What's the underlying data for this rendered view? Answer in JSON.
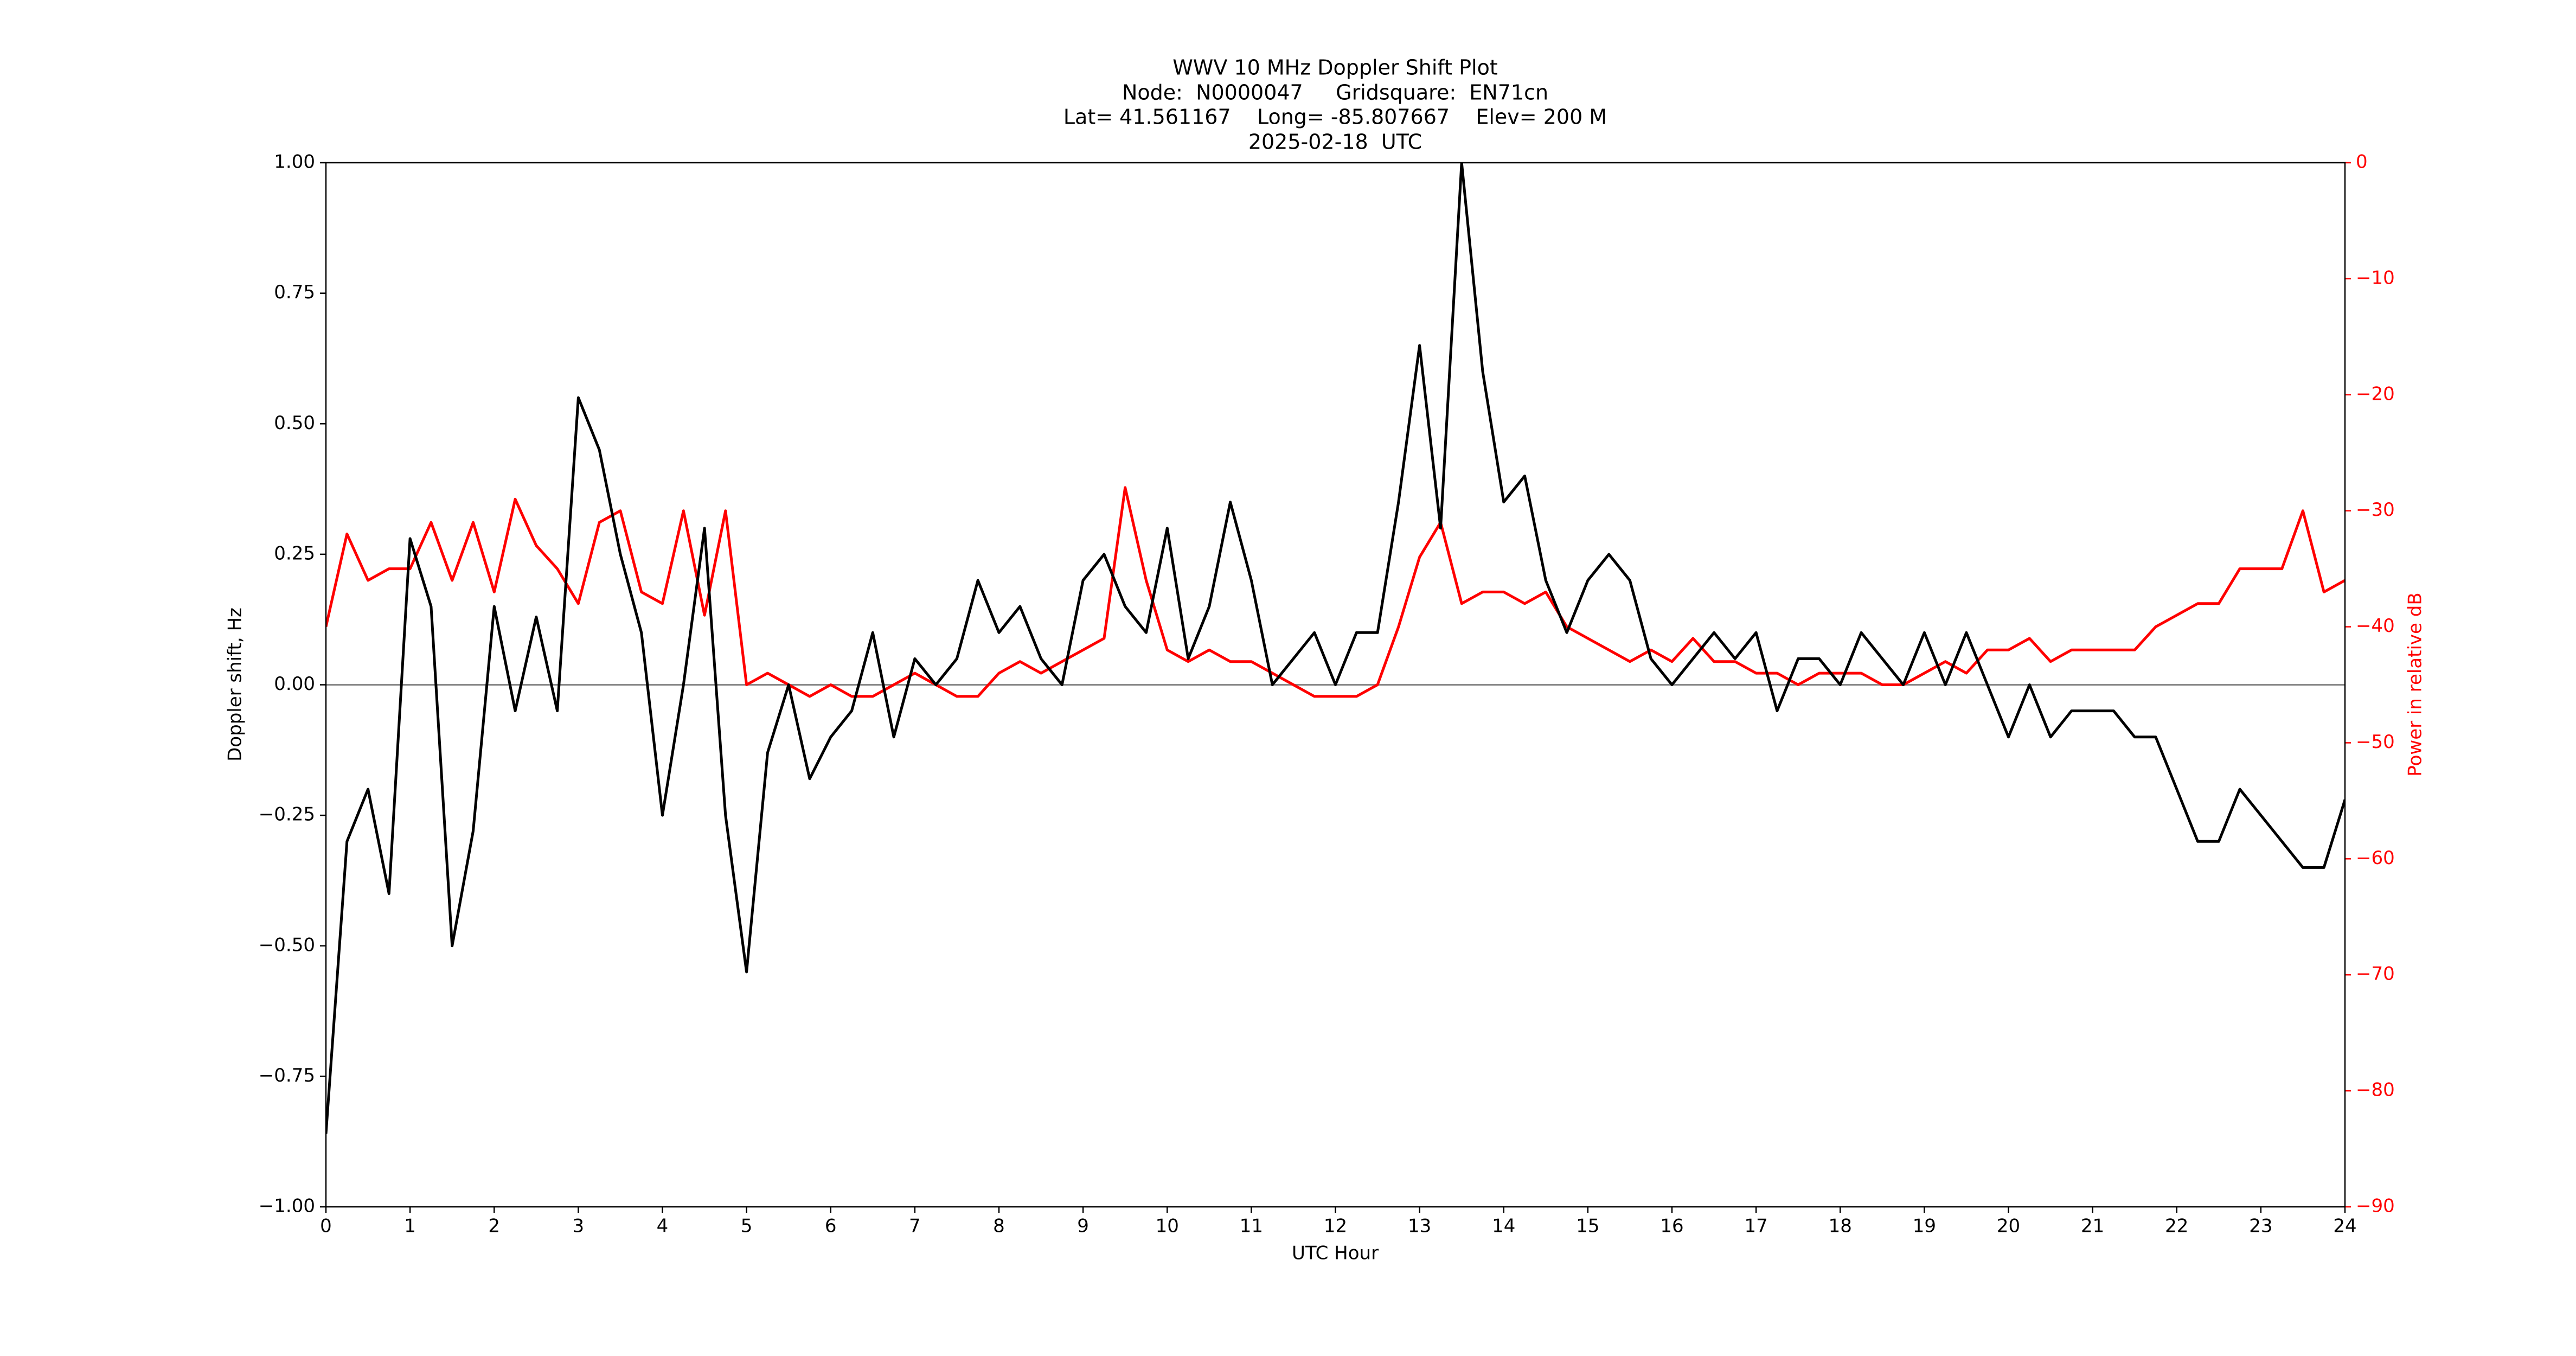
{
  "chart_data": {
    "type": "line",
    "title": "WWV 10 MHz Doppler Shift Plot",
    "subtitle": [
      "Node:  N0000047     Gridsquare:  EN71cn",
      "Lat= 41.561167    Long= -85.807667    Elev= 200 M",
      "2025-02-18  UTC"
    ],
    "x_label": "UTC Hour",
    "y_label": "Doppler shift, Hz",
    "y2_label": "Power in relative dB",
    "x": [
      0,
      0.25,
      0.5,
      0.75,
      1,
      1.25,
      1.5,
      1.75,
      2,
      2.25,
      2.5,
      2.75,
      3,
      3.25,
      3.5,
      3.75,
      4,
      4.25,
      4.5,
      4.75,
      5,
      5.25,
      5.5,
      5.75,
      6,
      6.25,
      6.5,
      6.75,
      7,
      7.25,
      7.5,
      7.75,
      8,
      8.25,
      8.5,
      8.75,
      9,
      9.25,
      9.5,
      9.75,
      10,
      10.25,
      10.5,
      10.75,
      11,
      11.25,
      11.5,
      11.75,
      12,
      12.25,
      12.5,
      12.75,
      13,
      13.25,
      13.5,
      13.75,
      14,
      14.25,
      14.5,
      14.75,
      15,
      15.25,
      15.5,
      15.75,
      16,
      16.25,
      16.5,
      16.75,
      17,
      17.25,
      17.5,
      17.75,
      18,
      18.25,
      18.5,
      18.75,
      19,
      19.25,
      19.5,
      19.75,
      20,
      20.25,
      20.5,
      20.75,
      21,
      21.25,
      21.5,
      21.75,
      22,
      22.25,
      22.5,
      22.75,
      23,
      23.25,
      23.5,
      23.75,
      24
    ],
    "series": [
      {
        "color": "#000000",
        "values": [
          -0.86,
          -0.3,
          -0.2,
          -0.4,
          0.28,
          0.15,
          -0.5,
          -0.28,
          0.15,
          -0.05,
          0.13,
          -0.05,
          0.55,
          0.45,
          0.25,
          0.1,
          -0.25,
          0.0,
          0.3,
          -0.25,
          -0.55,
          -0.13,
          0.0,
          -0.18,
          -0.1,
          -0.05,
          0.1,
          -0.1,
          0.05,
          0.0,
          0.05,
          0.2,
          0.1,
          0.15,
          0.05,
          0.0,
          0.2,
          0.25,
          0.15,
          0.1,
          0.3,
          0.05,
          0.15,
          0.35,
          0.2,
          0.0,
          0.05,
          0.1,
          0.0,
          0.1,
          0.1,
          0.35,
          0.65,
          0.3,
          1.0,
          0.6,
          0.35,
          0.4,
          0.2,
          0.1,
          0.2,
          0.25,
          0.2,
          0.05,
          0.0,
          0.05,
          0.1,
          0.05,
          0.1,
          -0.05,
          0.05,
          0.05,
          0.0,
          0.1,
          0.05,
          0.0,
          0.1,
          0.0,
          0.1,
          0.0,
          -0.1,
          0.0,
          -0.1,
          -0.05,
          -0.05,
          -0.05,
          -0.1,
          -0.1,
          -0.2,
          -0.3,
          -0.3,
          -0.2,
          -0.25,
          -0.3,
          -0.35,
          -0.35,
          -0.22
        ]
      },
      {
        "color": "#ff0000",
        "axis": "y2",
        "values": [
          -40,
          -32,
          -36,
          -35,
          -35,
          -31,
          -36,
          -31,
          -37,
          -29,
          -33,
          -35,
          -38,
          -31,
          -30,
          -37,
          -38,
          -30,
          -39,
          -30,
          -45,
          -44,
          -45,
          -46,
          -45,
          -46,
          -46,
          -45,
          -44,
          -45,
          -46,
          -46,
          -44,
          -43,
          -44,
          -43,
          -42,
          -41,
          -28,
          -36,
          -42,
          -43,
          -42,
          -43,
          -43,
          -44,
          -45,
          -46,
          -46,
          -46,
          -45,
          -40,
          -34,
          -31,
          -38,
          -37,
          -37,
          -38,
          -37,
          -40,
          -41,
          -42,
          -43,
          -42,
          -43,
          -41,
          -43,
          -43,
          -44,
          -44,
          -45,
          -44,
          -44,
          -44,
          -45,
          -45,
          -44,
          -43,
          -44,
          -42,
          -42,
          -41,
          -43,
          -42,
          -42,
          -42,
          -42,
          -40,
          -39,
          -38,
          -38,
          -35,
          -35,
          -35,
          -30,
          -37,
          -36
        ]
      }
    ],
    "reference_line": 0,
    "xlim": [
      0,
      24
    ],
    "xticks": [
      0,
      1,
      2,
      3,
      4,
      5,
      6,
      7,
      8,
      9,
      10,
      11,
      12,
      13,
      14,
      15,
      16,
      17,
      18,
      19,
      20,
      21,
      22,
      23,
      24
    ],
    "ylim": [
      -1,
      1
    ],
    "yticks": [
      {
        "value": -1,
        "label": "−1.00"
      },
      {
        "value": -0.75,
        "label": "−0.75"
      },
      {
        "value": -0.5,
        "label": "−0.50"
      },
      {
        "value": -0.25,
        "label": "−0.25"
      },
      {
        "value": 0,
        "label": "0.00"
      },
      {
        "value": 0.25,
        "label": "0.25"
      },
      {
        "value": 0.5,
        "label": "0.50"
      },
      {
        "value": 0.75,
        "label": "0.75"
      },
      {
        "value": 1,
        "label": "1.00"
      }
    ],
    "y2lim": [
      -90,
      0
    ],
    "y2ticks": [
      0,
      {
        "value": -10,
        "label": "−10"
      },
      {
        "value": -20,
        "label": "−20"
      },
      {
        "value": -30,
        "label": "−30"
      },
      {
        "value": -40,
        "label": "−40"
      },
      {
        "value": -50,
        "label": "−50"
      },
      {
        "value": -60,
        "label": "−60"
      },
      {
        "value": -70,
        "label": "−70"
      },
      {
        "value": -80,
        "label": "−80"
      },
      {
        "value": -90,
        "label": "−90"
      }
    ],
    "y2_color": "#ff0000"
  }
}
